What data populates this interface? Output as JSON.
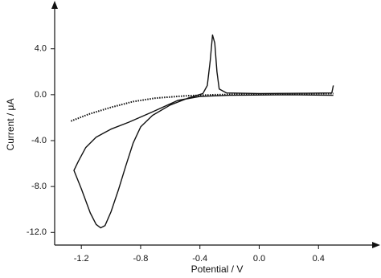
{
  "chart_data": {
    "type": "line",
    "x_label": "Potential / V",
    "y_label": "Current / μA",
    "xlim": [
      -1.38,
      0.8
    ],
    "ylim": [
      -13.1,
      7.9
    ],
    "xticks": [
      -1.2,
      -0.8,
      -0.4,
      {
        "value": 0,
        "label": "0.0"
      },
      0.4
    ],
    "yticks": [
      {
        "value": 4,
        "label": "4.0"
      },
      {
        "value": 0,
        "label": "0.0"
      },
      {
        "value": -4,
        "label": "-4.0"
      },
      {
        "value": -8,
        "label": "-8.0"
      },
      {
        "value": -12,
        "label": "-12.0"
      }
    ],
    "series": [
      {
        "color": "#111111",
        "dash": false,
        "x": [
          0.5,
          0.2,
          -0.2,
          -0.4,
          -0.55,
          -0.72,
          -0.88,
          -1.0,
          -1.1,
          -1.17,
          -1.22,
          -1.25,
          -1.2,
          -1.14,
          -1.1,
          -1.07,
          -1.04,
          -1.0,
          -0.95,
          -0.9,
          -0.85,
          -0.8,
          -0.72,
          -0.6,
          -0.48,
          -0.38,
          -0.35,
          -0.33,
          -0.315,
          -0.3,
          -0.285,
          -0.27,
          -0.22,
          0.0,
          0.3,
          0.49,
          0.5
        ],
        "values": [
          -0.05,
          0.0,
          -0.05,
          -0.15,
          -0.5,
          -1.5,
          -2.4,
          -3.0,
          -3.7,
          -4.6,
          -5.8,
          -6.6,
          -8.2,
          -10.3,
          -11.3,
          -11.6,
          -11.4,
          -10.2,
          -8.3,
          -6.2,
          -4.2,
          -2.8,
          -1.8,
          -0.9,
          -0.3,
          0.1,
          0.8,
          3.0,
          5.2,
          4.5,
          2.0,
          0.5,
          0.15,
          0.1,
          0.12,
          0.15,
          0.8
        ]
      },
      {
        "color": "#111111",
        "dash": true,
        "x": [
          -1.27,
          -1.15,
          -1.0,
          -0.85,
          -0.7,
          -0.5,
          -0.3,
          0.0,
          0.5
        ],
        "values": [
          -2.3,
          -1.7,
          -1.1,
          -0.6,
          -0.3,
          -0.1,
          0.0,
          0.05,
          0.1
        ]
      }
    ]
  }
}
